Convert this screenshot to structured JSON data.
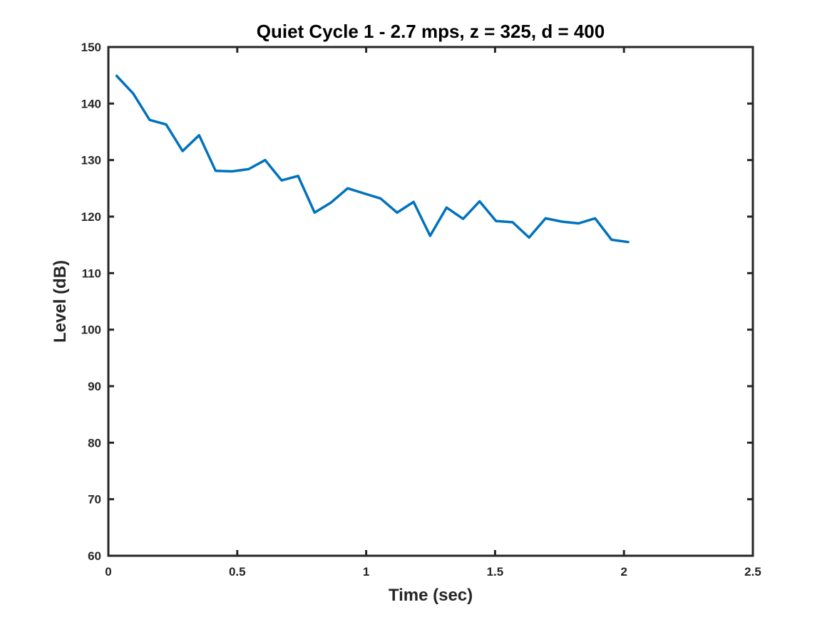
{
  "chart_data": {
    "type": "line",
    "title": "Quiet Cycle 1 - 2.7 mps, z = 325, d = 400",
    "xlabel": "Time (sec)",
    "ylabel": "Level (dB)",
    "xlim": [
      0,
      2.5
    ],
    "ylim": [
      60,
      150
    ],
    "xticks": [
      0,
      0.5,
      1,
      1.5,
      2,
      2.5
    ],
    "xtick_labels": [
      "0",
      "0.5",
      "1",
      "1.5",
      "2",
      "2.5"
    ],
    "yticks": [
      60,
      70,
      80,
      90,
      100,
      110,
      120,
      130,
      140,
      150
    ],
    "ytick_labels": [
      "60",
      "70",
      "80",
      "90",
      "100",
      "110",
      "120",
      "130",
      "140",
      "150"
    ],
    "grid": false,
    "legend": "none",
    "line_color": "#0072BD",
    "axis_color": "#262626",
    "series": [
      {
        "x": [
          0.032,
          0.096,
          0.16,
          0.224,
          0.288,
          0.352,
          0.416,
          0.48,
          0.544,
          0.608,
          0.672,
          0.736,
          0.8,
          0.864,
          0.928,
          0.992,
          1.056,
          1.12,
          1.184,
          1.248,
          1.312,
          1.376,
          1.44,
          1.504,
          1.568,
          1.632,
          1.696,
          1.76,
          1.824,
          1.888,
          1.952,
          2.016
        ],
        "y": [
          144.9,
          141.8,
          137.1,
          136.3,
          131.6,
          134.4,
          128.1,
          128.0,
          128.4,
          130.0,
          126.4,
          127.2,
          120.7,
          122.5,
          125.0,
          124.1,
          123.2,
          120.7,
          122.6,
          116.6,
          121.6,
          119.6,
          122.7,
          119.2,
          119.0,
          116.3,
          119.7,
          119.1,
          118.8,
          119.7,
          115.9,
          115.5
        ]
      }
    ]
  }
}
